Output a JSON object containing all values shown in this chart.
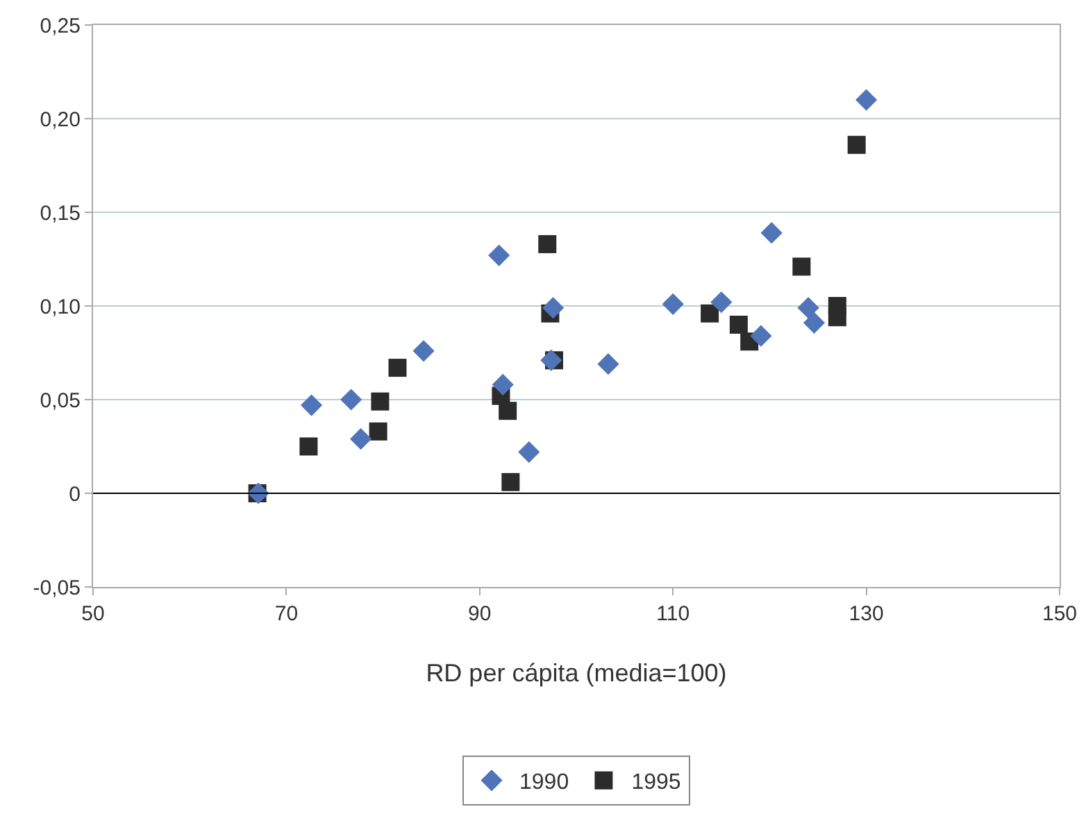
{
  "chart_data": {
    "type": "scatter",
    "xlabel": "RD per cápita (media=100)",
    "xlim": [
      50,
      150
    ],
    "xticks": [
      50,
      70,
      90,
      110,
      130,
      150
    ],
    "ylim": [
      -0.05,
      0.25
    ],
    "yticks": [
      {
        "value": -0.05,
        "label": "-0,05"
      },
      {
        "value": 0,
        "label": "0"
      },
      {
        "value": 0.05,
        "label": "0,05"
      },
      {
        "value": 0.1,
        "label": "0,10"
      },
      {
        "value": 0.15,
        "label": "0,15"
      },
      {
        "value": 0.2,
        "label": "0,20"
      },
      {
        "value": 0.25,
        "label": "0,25"
      }
    ],
    "grid": "y",
    "legend": "bottom",
    "ref_lines": [
      {
        "axis": "y",
        "value": 0,
        "color": "#000000",
        "line_style": "solid"
      }
    ],
    "series": [
      {
        "name": "1990",
        "color": "#4f74b8",
        "marker": "diamond",
        "x": [
          67.1,
          72.6,
          76.7,
          77.7,
          84.2,
          92.0,
          92.4,
          95.1,
          97.4,
          97.6,
          103.3,
          110.0,
          115.0,
          120.2,
          119.1,
          124.0,
          124.6,
          130.0
        ],
        "values": [
          0.0,
          0.047,
          0.05,
          0.029,
          0.076,
          0.127,
          0.058,
          0.022,
          0.071,
          0.099,
          0.069,
          0.101,
          0.102,
          0.139,
          0.084,
          0.099,
          0.091,
          0.21
        ]
      },
      {
        "name": "1995",
        "color": "#2b2b2b",
        "marker": "square",
        "x": [
          67.0,
          72.3,
          79.5,
          79.7,
          81.5,
          92.2,
          92.9,
          93.2,
          97.0,
          97.3,
          97.7,
          113.8,
          116.8,
          117.9,
          123.3,
          127.0,
          127.0,
          129.0
        ],
        "values": [
          0.0,
          0.025,
          0.033,
          0.049,
          0.067,
          0.052,
          0.044,
          0.006,
          0.133,
          0.096,
          0.071,
          0.096,
          0.09,
          0.081,
          0.121,
          0.1,
          0.094,
          0.186
        ]
      }
    ]
  }
}
